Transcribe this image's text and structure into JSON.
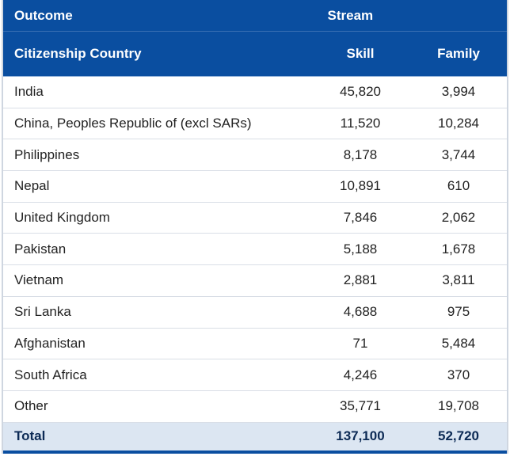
{
  "header": {
    "outcome_label": "Outcome",
    "stream_label": "Stream",
    "country_label": "Citizenship Country",
    "skill_label": "Skill",
    "family_label": "Family"
  },
  "rows": [
    {
      "country": "India",
      "skill": "45,820",
      "family": "3,994"
    },
    {
      "country": "China, Peoples Republic of (excl SARs)",
      "skill": "11,520",
      "family": "10,284"
    },
    {
      "country": "Philippines",
      "skill": "8,178",
      "family": "3,744"
    },
    {
      "country": "Nepal",
      "skill": "10,891",
      "family": "610"
    },
    {
      "country": "United Kingdom",
      "skill": "7,846",
      "family": "2,062"
    },
    {
      "country": "Pakistan",
      "skill": "5,188",
      "family": "1,678"
    },
    {
      "country": "Vietnam",
      "skill": "2,881",
      "family": "3,811"
    },
    {
      "country": "Sri Lanka",
      "skill": "4,688",
      "family": "975"
    },
    {
      "country": "Afghanistan",
      "skill": "71",
      "family": "5,484"
    },
    {
      "country": "South Africa",
      "skill": "4,246",
      "family": "370"
    },
    {
      "country": "Other",
      "skill": "35,771",
      "family": "19,708"
    }
  ],
  "total": {
    "label": "Total",
    "skill": "137,100",
    "family": "52,720"
  },
  "colors": {
    "header_bg": "#0a4ea0",
    "total_bg": "#dce6f2"
  }
}
